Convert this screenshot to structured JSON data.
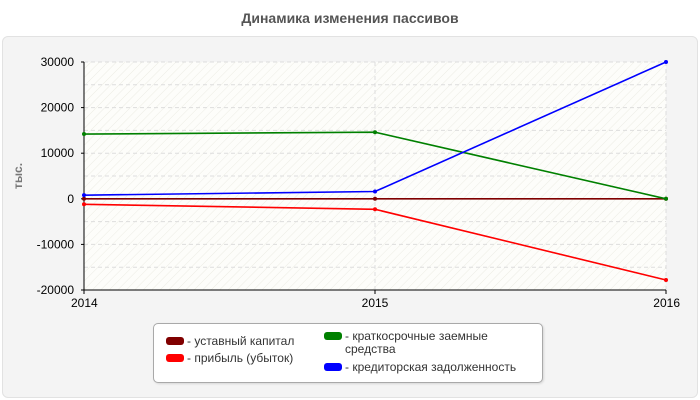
{
  "chart_data": {
    "type": "line",
    "title": "Динамика изменения пассивов",
    "xlabel": "",
    "ylabel": "тыс.",
    "x": [
      "2014",
      "2015",
      "2016"
    ],
    "ylim": [
      -20000,
      30000
    ],
    "yticks": [
      "-20000",
      "-10000",
      "0",
      "10000",
      "20000",
      "30000"
    ],
    "grid": true,
    "legend_position": "bottom",
    "series": [
      {
        "name": "- уставный капитал",
        "color": "#800000",
        "values": [
          0,
          0,
          0
        ]
      },
      {
        "name": "- прибыль (убыток)",
        "color": "#ff0000",
        "values": [
          -1200,
          -2300,
          -17800
        ]
      },
      {
        "name": "- краткосрочные заемные средства",
        "color": "#008000",
        "values": [
          14200,
          14600,
          0
        ]
      },
      {
        "name": "- кредиторская задолженность",
        "color": "#0000ff",
        "values": [
          800,
          1600,
          30000
        ]
      }
    ]
  }
}
